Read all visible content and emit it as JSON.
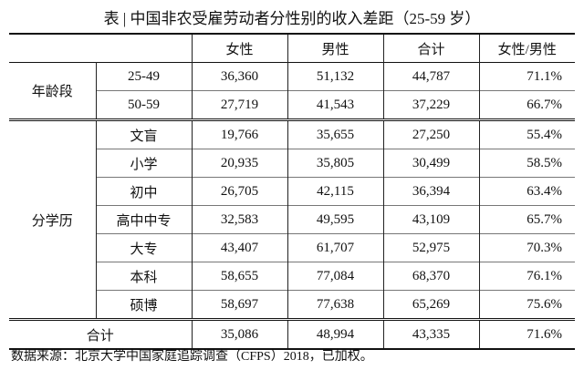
{
  "title": "表 | 中国非农受雇劳动者分性别的收入差距（25-59 岁）",
  "table": {
    "header": [
      "女性",
      "男性",
      "合计",
      "女性/男性"
    ],
    "groups": [
      {
        "label": "年龄段",
        "rows": [
          {
            "label": "25-49",
            "cells": [
              "36,360",
              "51,132",
              "44,787",
              "71.1%"
            ]
          },
          {
            "label": "50-59",
            "cells": [
              "27,719",
              "41,543",
              "37,229",
              "66.7%"
            ]
          }
        ]
      },
      {
        "label": "分学历",
        "rows": [
          {
            "label": "文盲",
            "cells": [
              "19,766",
              "35,655",
              "27,250",
              "55.4%"
            ]
          },
          {
            "label": "小学",
            "cells": [
              "20,935",
              "35,805",
              "30,499",
              "58.5%"
            ]
          },
          {
            "label": "初中",
            "cells": [
              "26,705",
              "42,115",
              "36,394",
              "63.4%"
            ]
          },
          {
            "label": "高中中专",
            "cells": [
              "32,583",
              "49,595",
              "43,109",
              "65.7%"
            ]
          },
          {
            "label": "大专",
            "cells": [
              "43,407",
              "61,707",
              "52,975",
              "70.3%"
            ]
          },
          {
            "label": "本科",
            "cells": [
              "58,655",
              "77,084",
              "68,370",
              "76.1%"
            ]
          },
          {
            "label": "硕博",
            "cells": [
              "58,697",
              "77,638",
              "65,269",
              "75.6%"
            ]
          }
        ]
      }
    ],
    "total": {
      "label": "合计",
      "cells": [
        "35,086",
        "48,994",
        "43,335",
        "71.6%"
      ]
    }
  },
  "source": "数据来源：北京大学中国家庭追踪调查（CFPS）2018，已加权。"
}
